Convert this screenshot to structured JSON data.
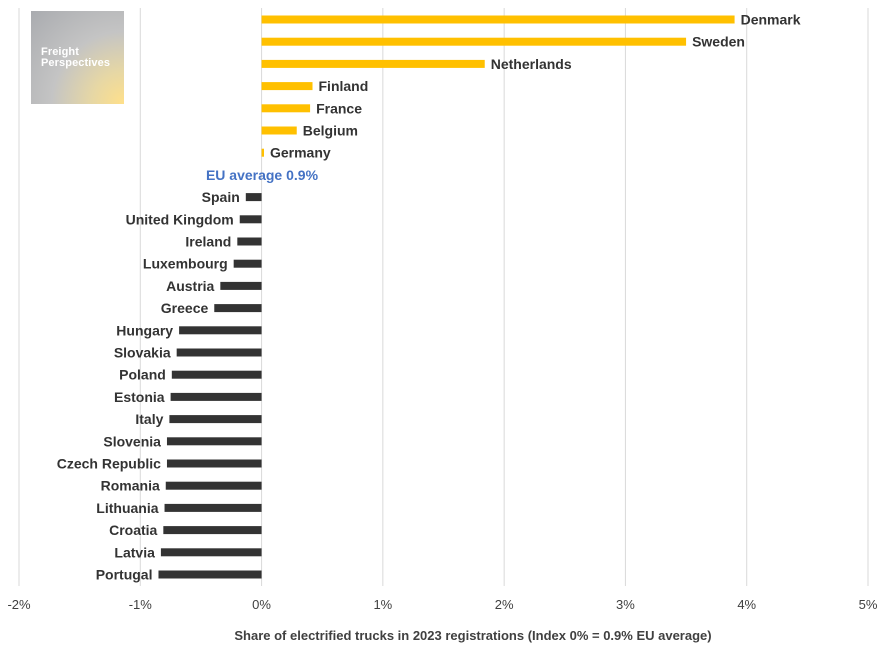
{
  "logo": {
    "line1": "Freight",
    "line2": "Perspectives"
  },
  "colors": {
    "positive": "#FFC000",
    "negative": "#333333",
    "average_label": "#4472C4",
    "grid": "#d9d9d9"
  },
  "chart_data": {
    "type": "bar",
    "orientation": "horizontal",
    "title": "",
    "xlabel": "Share of electrified trucks in 2023 registrations (Index 0% = 0.9% EU average)",
    "ylabel": "",
    "xlim": [
      -2,
      5
    ],
    "x_ticks": [
      -2,
      -1,
      0,
      1,
      2,
      3,
      4,
      5
    ],
    "x_tick_labels": [
      "-2%",
      "-1%",
      "0%",
      "1%",
      "2%",
      "3%",
      "4%",
      "5%"
    ],
    "grid": true,
    "legend": "none",
    "reference_label": "EU average 0.9%",
    "categories": [
      "Denmark",
      "Sweden",
      "Netherlands",
      "Finland",
      "France",
      "Belgium",
      "Germany",
      "EU average 0.9%",
      "Spain",
      "United Kingdom",
      "Ireland",
      "Luxembourg",
      "Austria",
      "Greece",
      "Hungary",
      "Slovakia",
      "Poland",
      "Estonia",
      "Italy",
      "Slovenia",
      "Czech Republic",
      "Romania",
      "Lithuania",
      "Croatia",
      "Latvia",
      "Portugal"
    ],
    "values": [
      3.9,
      3.5,
      1.84,
      0.42,
      0.4,
      0.29,
      0.02,
      0.0,
      -0.13,
      -0.18,
      -0.2,
      -0.23,
      -0.34,
      -0.39,
      -0.68,
      -0.7,
      -0.74,
      -0.75,
      -0.76,
      -0.78,
      -0.78,
      -0.79,
      -0.8,
      -0.81,
      -0.83,
      -0.85
    ]
  }
}
